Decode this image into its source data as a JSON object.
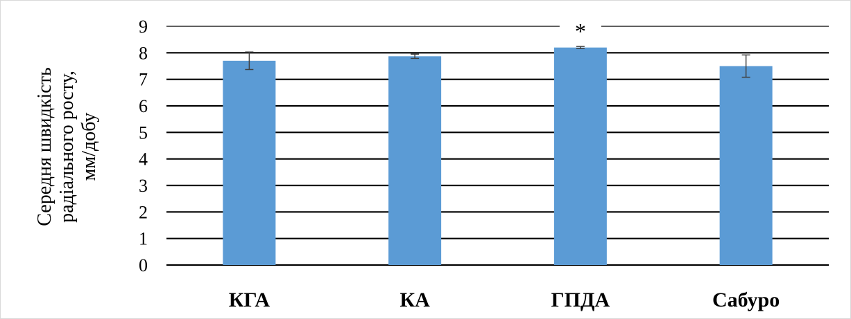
{
  "chart_data": {
    "type": "bar",
    "categories": [
      "КГА",
      "КА",
      "ГПДА",
      "Сабуро"
    ],
    "values": [
      7.7,
      7.87,
      8.2,
      7.5
    ],
    "errors": [
      0.33,
      0.08,
      0.04,
      0.42
    ],
    "ylabel_lines": [
      "Середня швидкість",
      "радіального росту,",
      "мм/добу"
    ],
    "yticks": [
      "0",
      "1",
      "2",
      "3",
      "4",
      "5",
      "6",
      "7",
      "8",
      "9"
    ],
    "ylim": [
      0,
      9
    ],
    "grid": true,
    "annotations": [
      {
        "category": "ГПДА",
        "text": "*"
      }
    ],
    "colors": {
      "bar": "#5b9bd5",
      "grid": "#000000",
      "error": "#404040"
    }
  }
}
